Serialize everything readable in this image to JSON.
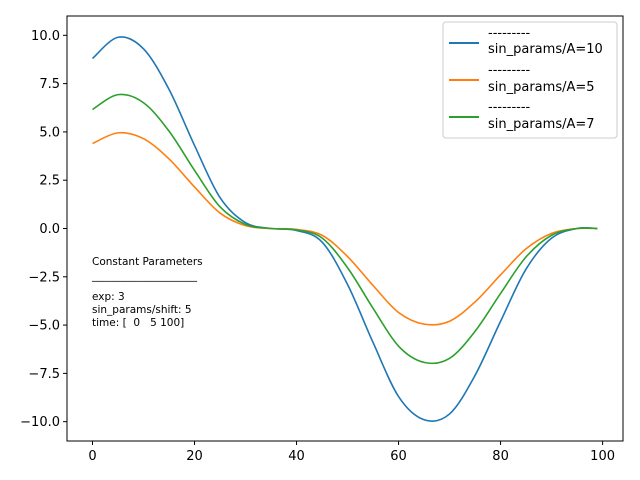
{
  "chart_data": {
    "type": "line",
    "xlim": [
      -5,
      104
    ],
    "ylim": [
      -11,
      11
    ],
    "x_ticks": [
      0,
      20,
      40,
      60,
      80,
      100
    ],
    "y_ticks": [
      10.0,
      7.5,
      5.0,
      2.5,
      0.0,
      -2.5,
      -5.0,
      -7.5,
      -10.0
    ],
    "x_tick_labels": [
      "0",
      "20",
      "40",
      "60",
      "80",
      "100"
    ],
    "y_tick_labels": [
      "10.0",
      "7.5",
      "5.0",
      "2.5",
      "0.0",
      "−2.5",
      "−5.0",
      "−7.5",
      "−10.0"
    ],
    "x": [
      0,
      5,
      10,
      15,
      20,
      25,
      30,
      35,
      40,
      45,
      50,
      55,
      60,
      65,
      70,
      75,
      80,
      85,
      90,
      95,
      99
    ],
    "series": [
      {
        "name": "sin_params/A=10",
        "legend_lines": [
          "---------",
          "sin_params/A=10"
        ],
        "color": "#1f77b4",
        "values": [
          8.8,
          9.9,
          9.3,
          7.2,
          4.3,
          1.6,
          0.3,
          0.0,
          -0.1,
          -0.7,
          -2.9,
          -5.9,
          -8.7,
          -9.9,
          -9.6,
          -7.6,
          -4.8,
          -2.1,
          -0.5,
          0.0,
          0.0
        ]
      },
      {
        "name": "sin_params/A=5",
        "legend_lines": [
          "---------",
          "sin_params/A=5"
        ],
        "color": "#ff7f0e",
        "values": [
          4.4,
          4.95,
          4.65,
          3.6,
          2.15,
          0.8,
          0.15,
          0.0,
          -0.05,
          -0.35,
          -1.45,
          -2.95,
          -4.35,
          -4.95,
          -4.8,
          -3.8,
          -2.4,
          -1.05,
          -0.25,
          0.0,
          0.0
        ]
      },
      {
        "name": "sin_params/A=7",
        "legend_lines": [
          "---------",
          "sin_params/A=7"
        ],
        "color": "#2ca02c",
        "values": [
          6.16,
          6.93,
          6.51,
          5.04,
          3.01,
          1.12,
          0.21,
          0.0,
          -0.07,
          -0.49,
          -2.03,
          -4.13,
          -6.09,
          -6.93,
          -6.72,
          -5.32,
          -3.36,
          -1.47,
          -0.35,
          0.0,
          0.0
        ]
      }
    ],
    "legend_position": "top-right",
    "grid": false,
    "annotation": {
      "lines": [
        "Constant Parameters",
        "____________________",
        "",
        "exp: 3",
        "sin_params/shift: 5",
        "time: [  0   5 100]"
      ]
    }
  }
}
